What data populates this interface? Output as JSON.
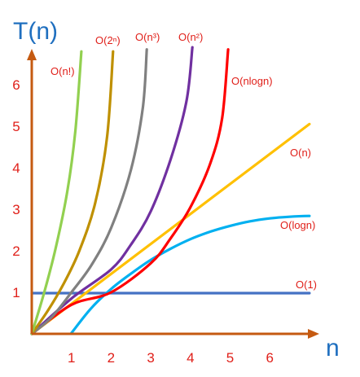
{
  "chart_data": {
    "type": "line",
    "title": "",
    "ylabel": "T(n)",
    "xlabel": "n",
    "x_ticks": [
      "1",
      "2",
      "3",
      "4",
      "5",
      "6"
    ],
    "y_ticks": [
      "1",
      "2",
      "3",
      "4",
      "5",
      "6"
    ],
    "xlim": [
      0,
      7.1
    ],
    "ylim": [
      0,
      6.8
    ],
    "grid": false,
    "axis_color": "#c55a11",
    "series": [
      {
        "name": "O(1)",
        "color": "#4472c4",
        "x": [
          0,
          7
        ],
        "y": [
          0.98,
          0.98
        ]
      },
      {
        "name": "O(logn)",
        "color": "#00b0f0",
        "x": [
          1,
          1.5,
          2,
          2.5,
          3,
          3.5,
          4,
          4.5,
          5,
          5.5,
          6,
          6.5,
          7
        ],
        "y": [
          0.02,
          0.62,
          1.08,
          1.45,
          1.78,
          2.05,
          2.28,
          2.46,
          2.6,
          2.71,
          2.78,
          2.82,
          2.84
        ]
      },
      {
        "name": "O(n)",
        "color": "#ffc000",
        "x": [
          0,
          7
        ],
        "y": [
          0,
          5.05
        ]
      },
      {
        "name": "O(nlogn)",
        "color": "#ff0000",
        "x": [
          0,
          1,
          2,
          3,
          3.5,
          4,
          4.5,
          4.8,
          4.95
        ],
        "y": [
          0,
          0.7,
          1.0,
          1.7,
          2.3,
          3.05,
          4.1,
          5.2,
          6.85
        ]
      },
      {
        "name": "O(n²)",
        "color": "#7030a0",
        "x": [
          0,
          1,
          2,
          2.5,
          3,
          3.5,
          3.9,
          4.05
        ],
        "y": [
          0,
          0.85,
          1.55,
          2.15,
          2.95,
          4.2,
          5.6,
          6.9
        ]
      },
      {
        "name": "O(n³)",
        "color": "#808080",
        "x": [
          0,
          0.5,
          1,
          1.5,
          2,
          2.5,
          2.8,
          2.9
        ],
        "y": [
          0,
          0.4,
          1.0,
          1.65,
          2.55,
          3.95,
          5.45,
          6.85
        ]
      },
      {
        "name": "O(2ⁿ)",
        "color": "#bf9000",
        "x": [
          0,
          0.4,
          0.8,
          1.2,
          1.6,
          1.9,
          2.05
        ],
        "y": [
          0,
          0.55,
          1.2,
          2.0,
          3.15,
          4.75,
          6.8
        ]
      },
      {
        "name": "O(n!)",
        "color": "#92d050",
        "x": [
          0,
          0.3,
          0.6,
          0.9,
          1.1,
          1.25
        ],
        "y": [
          0,
          0.95,
          2.05,
          3.45,
          4.9,
          6.8
        ]
      }
    ]
  }
}
